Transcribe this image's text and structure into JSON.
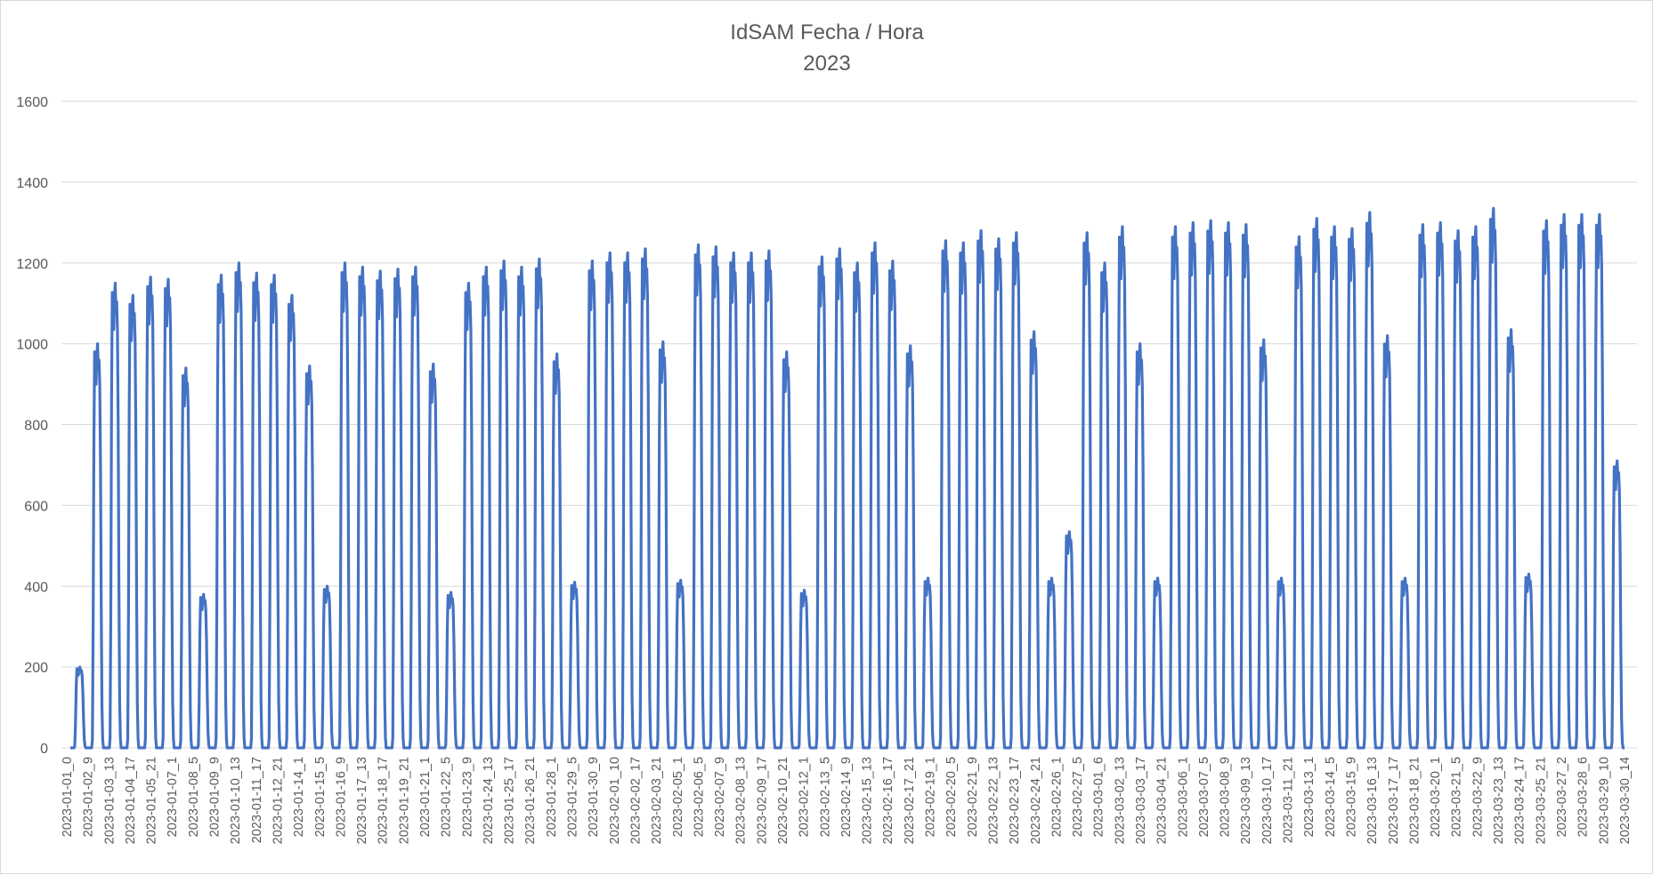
{
  "chart_data": {
    "type": "line",
    "title": "IdSAM Fecha / Hora",
    "subtitle": "2023",
    "xlabel": "",
    "ylabel": "",
    "ylim": [
      0,
      1600
    ],
    "y_ticks": [
      0,
      200,
      400,
      600,
      800,
      1000,
      1200,
      1400,
      1600
    ],
    "grid": true,
    "legend": "none",
    "line_color": "#4472C4",
    "x_tick_labels": [
      "2023-01-01_0",
      "2023-01-02_9",
      "2023-01-03_13",
      "2023-01-04_17",
      "2023-01-05_21",
      "2023-01-07_1",
      "2023-01-08_5",
      "2023-01-09_9",
      "2023-01-10_13",
      "2023-01-11_17",
      "2023-01-12_21",
      "2023-01-14_1",
      "2023-01-15_5",
      "2023-01-16_9",
      "2023-01-17_13",
      "2023-01-18_17",
      "2023-01-19_21",
      "2023-01-21_1",
      "2023-01-22_5",
      "2023-01-23_9",
      "2023-01-24_13",
      "2023-01-25_17",
      "2023-01-26_21",
      "2023-01-28_1",
      "2023-01-29_5",
      "2023-01-30_9",
      "2023-02-01_10",
      "2023-02-02_17",
      "2023-02-03_21",
      "2023-02-05_1",
      "2023-02-06_5",
      "2023-02-07_9",
      "2023-02-08_13",
      "2023-02-09_17",
      "2023-02-10_21",
      "2023-02-12_1",
      "2023-02-13_5",
      "2023-02-14_9",
      "2023-02-15_13",
      "2023-02-16_17",
      "2023-02-17_21",
      "2023-02-19_1",
      "2023-02-20_5",
      "2023-02-21_9",
      "2023-02-22_13",
      "2023-02-23_17",
      "2023-02-24_21",
      "2023-02-26_1",
      "2023-02-27_5",
      "2023-03-01_6",
      "2023-03-02_13",
      "2023-03-03_17",
      "2023-03-04_21",
      "2023-03-06_1",
      "2023-03-07_5",
      "2023-03-08_9",
      "2023-03-09_13",
      "2023-03-10_17",
      "2023-03-11_21",
      "2023-03-13_1",
      "2023-03-14_5",
      "2023-03-15_9",
      "2023-03-16_13",
      "2023-03-17_17",
      "2023-03-18_21",
      "2023-03-20_1",
      "2023-03-21_5",
      "2023-03-22_9",
      "2023-03-23_13",
      "2023-03-24_17",
      "2023-03-25_21",
      "2023-03-27_2",
      "2023-03-28_6",
      "2023-03-29_10",
      "2023-03-30_14"
    ],
    "series": [
      {
        "values_note": "",
        "daily_peaks": [
          200,
          1000,
          1150,
          1120,
          1165,
          1160,
          940,
          380,
          1170,
          1200,
          1175,
          1170,
          1120,
          945,
          400,
          1200,
          1190,
          1180,
          1185,
          1190,
          950,
          385,
          1150,
          1190,
          1205,
          1190,
          1210,
          975,
          410,
          1205,
          1225,
          1225,
          1235,
          1005,
          415,
          1245,
          1240,
          1225,
          1225,
          1230,
          980,
          390,
          1215,
          1235,
          1200,
          1250,
          1205,
          995,
          420,
          1255,
          1250,
          1280,
          1260,
          1275,
          1030,
          420,
          535,
          1275,
          1200,
          1290,
          1000,
          420,
          1290,
          1300,
          1305,
          1300,
          1295,
          1010,
          420,
          1265,
          1310,
          1290,
          1285,
          1325,
          1020,
          420,
          1295,
          1300,
          1280,
          1290,
          1335,
          1035,
          430,
          1305,
          1320,
          1320,
          1320,
          710
        ]
      }
    ]
  }
}
